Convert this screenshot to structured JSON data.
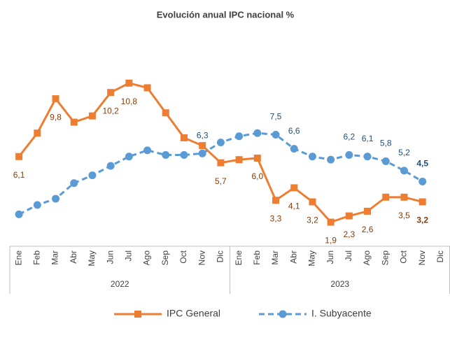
{
  "chart_data": {
    "type": "line",
    "title": "Evolución anual IPC nacional %",
    "categories": [
      "Ene",
      "Feb",
      "Mar",
      "Abr",
      "May",
      "Jun",
      "Jul",
      "Ago",
      "Sep",
      "Oct",
      "Nov",
      "Dic",
      "Ene",
      "Feb",
      "Mar",
      "Abr",
      "May",
      "Jun",
      "Jul",
      "Ago",
      "Sep",
      "Oct",
      "Nov",
      "Dic"
    ],
    "category_groups": [
      "2022",
      "2023"
    ],
    "ylim": [
      0,
      12
    ],
    "legend": "bottom",
    "series": [
      {
        "name": "IPC General",
        "color": "#ed7d31",
        "label_color": "#843c0c",
        "marker": "square",
        "dash": false,
        "values": [
          6.1,
          7.6,
          9.8,
          8.3,
          8.7,
          10.2,
          10.8,
          10.5,
          8.9,
          7.3,
          6.8,
          5.7,
          5.9,
          6.0,
          3.3,
          4.1,
          3.2,
          1.9,
          2.3,
          2.6,
          3.5,
          3.5,
          3.2,
          null
        ],
        "value_labels": [
          "6,1",
          null,
          "9,8",
          null,
          null,
          "10,2",
          "10,8",
          null,
          null,
          null,
          null,
          "5,7",
          null,
          "6,0",
          "3,3",
          "4,1",
          "3,2",
          "1,9",
          "2,3",
          "2,6",
          null,
          "3,5",
          "3,2",
          null
        ]
      },
      {
        "name": "I. Subyacente",
        "color": "#5b9bd5",
        "label_color": "#1f4e79",
        "marker": "circle",
        "dash": true,
        "values": [
          2.4,
          3.0,
          3.4,
          4.4,
          4.9,
          5.5,
          6.1,
          6.5,
          6.2,
          6.2,
          6.3,
          7.0,
          7.4,
          7.6,
          7.5,
          6.6,
          6.1,
          5.9,
          6.2,
          6.1,
          5.8,
          5.2,
          4.5,
          null
        ],
        "value_labels": [
          null,
          null,
          null,
          null,
          null,
          null,
          null,
          null,
          null,
          null,
          "6,3",
          null,
          null,
          null,
          "7,5",
          "6,6",
          null,
          null,
          "6,2",
          "6,1",
          "5,8",
          "5,2",
          "4,5",
          null
        ]
      }
    ]
  }
}
